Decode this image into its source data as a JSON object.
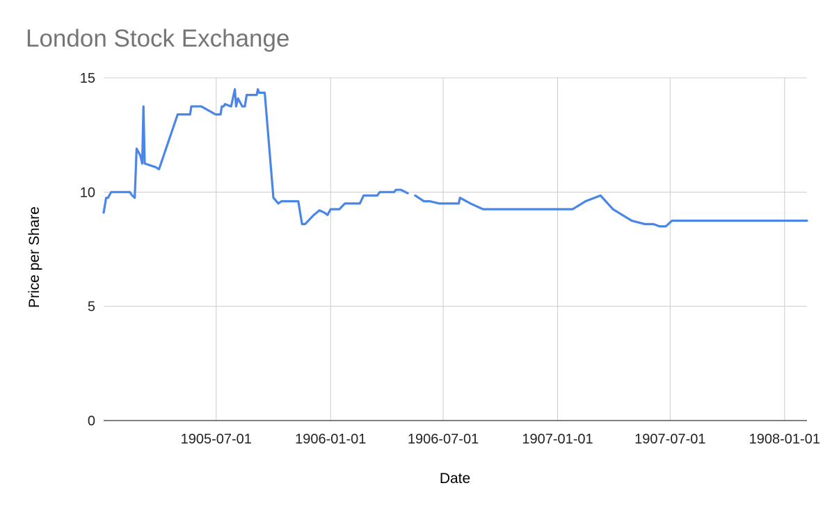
{
  "chart_data": {
    "type": "line",
    "title": "London Stock Exchange",
    "xlabel": "Date",
    "ylabel": "Price per Share",
    "ylim": [
      0,
      15
    ],
    "xlim": [
      "1905-01-01",
      "1908-02-06"
    ],
    "y_ticks": [
      0,
      5,
      10,
      15
    ],
    "x_ticks": [
      "1905-07-01",
      "1906-01-01",
      "1906-07-01",
      "1907-01-01",
      "1907-07-01",
      "1908-01-01"
    ],
    "grid": true,
    "legend": "none",
    "color": "#4a86e8",
    "series": [
      {
        "segments": [
          [
            [
              "1905-01-01",
              9.1
            ],
            [
              "1905-01-05",
              9.75
            ],
            [
              "1905-01-08",
              9.75
            ],
            [
              "1905-01-13",
              10.0
            ],
            [
              "1905-02-12",
              10.0
            ],
            [
              "1905-02-16",
              9.85
            ],
            [
              "1905-02-20",
              9.75
            ],
            [
              "1905-02-23",
              11.9
            ],
            [
              "1905-03-01",
              11.6
            ],
            [
              "1905-03-04",
              11.25
            ],
            [
              "1905-03-06",
              13.75
            ],
            [
              "1905-03-08",
              11.25
            ],
            [
              "1905-03-19",
              11.15
            ],
            [
              "1905-03-25",
              11.1
            ],
            [
              "1905-03-31",
              11.0
            ],
            [
              "1905-04-30",
              13.4
            ],
            [
              "1905-05-20",
              13.4
            ],
            [
              "1905-05-22",
              13.75
            ],
            [
              "1905-06-07",
              13.75
            ],
            [
              "1905-06-30",
              13.4
            ],
            [
              "1905-07-08",
              13.4
            ],
            [
              "1905-07-10",
              13.75
            ],
            [
              "1905-07-13",
              13.75
            ],
            [
              "1905-07-15",
              13.85
            ],
            [
              "1905-07-25",
              13.75
            ],
            [
              "1905-07-31",
              14.5
            ],
            [
              "1905-08-02",
              13.75
            ],
            [
              "1905-08-05",
              14.1
            ],
            [
              "1905-08-12",
              13.75
            ],
            [
              "1905-08-16",
              13.75
            ],
            [
              "1905-08-19",
              14.25
            ],
            [
              "1905-09-04",
              14.25
            ],
            [
              "1905-09-06",
              14.5
            ],
            [
              "1905-09-08",
              14.35
            ],
            [
              "1905-09-17",
              14.35
            ],
            [
              "1905-10-01",
              9.75
            ],
            [
              "1905-10-09",
              9.5
            ],
            [
              "1905-10-14",
              9.6
            ],
            [
              "1905-11-10",
              9.6
            ],
            [
              "1905-11-16",
              8.6
            ],
            [
              "1905-11-21",
              8.6
            ],
            [
              "1905-12-05",
              9.0
            ],
            [
              "1905-12-14",
              9.2
            ],
            [
              "1905-12-22",
              9.1
            ],
            [
              "1905-12-27",
              9.0
            ],
            [
              "1906-01-01",
              9.25
            ],
            [
              "1906-01-10",
              9.25
            ],
            [
              "1906-01-15",
              9.25
            ],
            [
              "1906-01-24",
              9.5
            ],
            [
              "1906-02-17",
              9.5
            ],
            [
              "1906-02-23",
              9.85
            ],
            [
              "1906-03-17",
              9.85
            ],
            [
              "1906-03-21",
              10.0
            ],
            [
              "1906-04-13",
              10.0
            ],
            [
              "1906-04-16",
              10.1
            ],
            [
              "1906-04-24",
              10.1
            ],
            [
              "1906-05-05",
              9.95
            ]
          ],
          [
            [
              "1906-05-17",
              9.85
            ],
            [
              "1906-05-31",
              9.6
            ],
            [
              "1906-06-09",
              9.6
            ],
            [
              "1906-06-25",
              9.5
            ],
            [
              "1906-07-26",
              9.5
            ],
            [
              "1906-07-28",
              9.75
            ],
            [
              "1906-08-14",
              9.5
            ],
            [
              "1906-09-03",
              9.25
            ],
            [
              "1907-01-25",
              9.25
            ],
            [
              "1907-02-15",
              9.6
            ],
            [
              "1907-03-11",
              9.85
            ],
            [
              "1907-03-31",
              9.25
            ],
            [
              "1907-04-30",
              8.75
            ],
            [
              "1907-05-21",
              8.6
            ],
            [
              "1907-06-04",
              8.6
            ],
            [
              "1907-06-14",
              8.5
            ],
            [
              "1907-06-24",
              8.5
            ],
            [
              "1907-07-04",
              8.75
            ],
            [
              "1907-08-14",
              8.75
            ],
            [
              "1908-02-06",
              8.75
            ]
          ]
        ]
      }
    ]
  }
}
